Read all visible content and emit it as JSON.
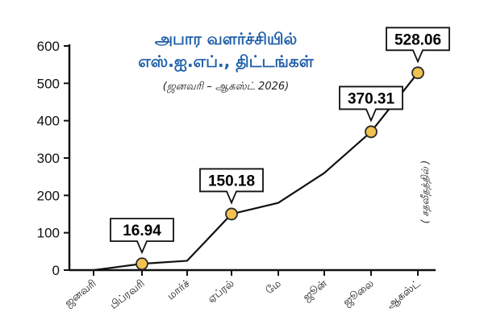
{
  "chart_data": {
    "type": "line",
    "title_line1": "அபார வளர்ச்சியில்",
    "title_line2": "எஸ்.ஐ.எப்., திட்டங்கள்",
    "subtitle": "(ஜனவரி – ஆகஸ்ட் 2026)",
    "ylabel": "( சதவீதத்தில் )",
    "ylim": [
      0,
      600
    ],
    "yticks": [
      "0",
      "100",
      "200",
      "300",
      "400",
      "500",
      "600"
    ],
    "categories": [
      "ஜனவரி",
      "பிப்ரவரி",
      "மார்ச்",
      "ஏப்ரல்",
      "மே",
      "ஜூன்",
      "ஜூலை",
      "ஆகஸ்ட்"
    ],
    "values": [
      0,
      16.94,
      25,
      150.18,
      180,
      260,
      370.31,
      528.06
    ],
    "highlighted": [
      {
        "index": 1,
        "label": "16.94"
      },
      {
        "index": 3,
        "label": "150.18"
      },
      {
        "index": 6,
        "label": "370.31"
      },
      {
        "index": 7,
        "label": "528.06"
      }
    ],
    "colors": {
      "line": "#111111",
      "marker_fill": "#f2c14e",
      "marker_stroke": "#2a2a2a",
      "title": "#1f5fa8"
    }
  }
}
